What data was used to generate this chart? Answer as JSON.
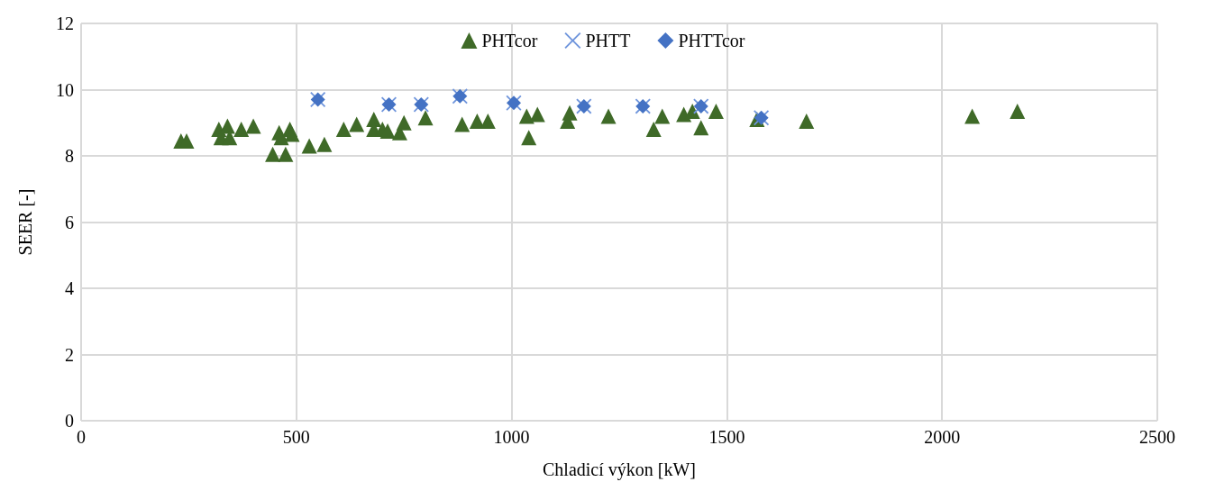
{
  "chart_data": {
    "type": "scatter",
    "xlabel": "Chladicí výkon [kW]",
    "ylabel": "SEER [-]",
    "xlim": [
      0,
      2500
    ],
    "xticks": [
      0,
      500,
      1000,
      1500,
      2000,
      2500
    ],
    "ylim": [
      0,
      12
    ],
    "yticks": [
      0,
      2,
      4,
      6,
      8,
      10,
      12
    ],
    "grid": true,
    "legend": "top",
    "series": [
      {
        "name": "PHTcor",
        "color": "#3f6a28",
        "marker": "triangle",
        "x": [
          232,
          245,
          320,
          325,
          340,
          345,
          372,
          400,
          445,
          460,
          465,
          475,
          485,
          490,
          530,
          565,
          610,
          640,
          680,
          680,
          700,
          712,
          740,
          750,
          800,
          885,
          920,
          945,
          1035,
          1040,
          1060,
          1130,
          1135,
          1225,
          1330,
          1350,
          1400,
          1420,
          1440,
          1475,
          1570,
          1685,
          2070,
          2175
        ],
        "values": [
          8.45,
          8.45,
          8.8,
          8.55,
          8.9,
          8.55,
          8.8,
          8.9,
          8.05,
          8.7,
          8.55,
          8.05,
          8.8,
          8.65,
          8.3,
          8.35,
          8.8,
          8.95,
          9.1,
          8.8,
          8.8,
          8.75,
          8.7,
          9.0,
          9.15,
          8.95,
          9.05,
          9.05,
          9.2,
          8.55,
          9.25,
          9.05,
          9.3,
          9.2,
          8.8,
          9.2,
          9.25,
          9.35,
          8.85,
          9.35,
          9.1,
          9.05,
          9.2,
          9.35
        ]
      },
      {
        "name": "PHTT",
        "color": "#6f95dc",
        "marker": "cross",
        "x": [
          550,
          715,
          790,
          880,
          1005,
          1168,
          1305,
          1440,
          1580
        ],
        "values": [
          9.7,
          9.55,
          9.55,
          9.8,
          9.6,
          9.5,
          9.5,
          9.5,
          9.15
        ]
      },
      {
        "name": "PHTTcor",
        "color": "#4472c4",
        "marker": "diamond",
        "x": [
          550,
          715,
          790,
          880,
          1005,
          1168,
          1305,
          1440,
          1580
        ],
        "values": [
          9.7,
          9.55,
          9.55,
          9.8,
          9.6,
          9.5,
          9.5,
          9.5,
          9.15
        ]
      }
    ]
  }
}
